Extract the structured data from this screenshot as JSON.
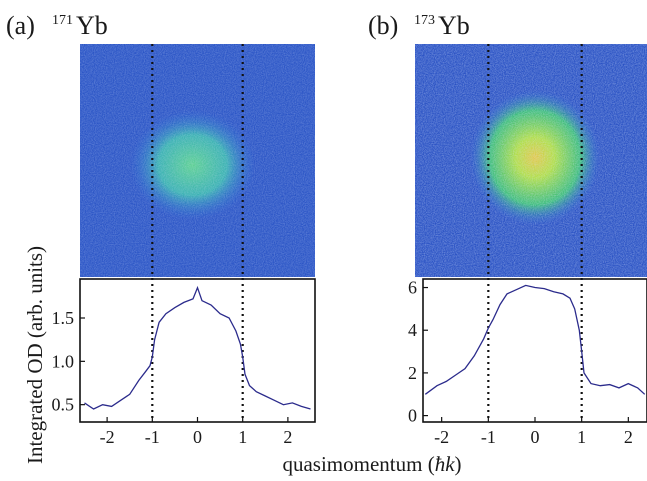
{
  "figure": {
    "ylabel": "Integrated OD (arb. units)",
    "xlabel_main": "quasimomentum (",
    "xlabel_symbol": "ħk",
    "xlabel_close": ")"
  },
  "panels": [
    {
      "tag": "(a)",
      "mass": "171",
      "element": "Yb",
      "image": {
        "color_bg": "#2a55c8",
        "color_center": "#45d29a",
        "peak": 0.55
      },
      "chart_data": {
        "type": "line",
        "xlim": [
          -2.6,
          2.6
        ],
        "ylim": [
          0.3,
          1.95
        ],
        "x_ticks": [
          -2,
          -1,
          0,
          1,
          2
        ],
        "x_tick_labels": [
          "-2",
          "-1",
          "0",
          "1",
          "2"
        ],
        "y_ticks": [
          0.5,
          1.0,
          1.5
        ],
        "y_tick_labels": [
          "0.5",
          "1.0",
          "1.5"
        ],
        "vlines": [
          -1,
          1
        ],
        "series": [
          {
            "color": "#2b2b8c",
            "x": [
              -2.5,
              -2.3,
              -2.1,
              -1.9,
              -1.7,
              -1.5,
              -1.3,
              -1.15,
              -1.05,
              -1.0,
              -0.95,
              -0.85,
              -0.7,
              -0.5,
              -0.3,
              -0.1,
              0.0,
              0.1,
              0.3,
              0.5,
              0.7,
              0.85,
              0.95,
              1.0,
              1.05,
              1.15,
              1.3,
              1.5,
              1.7,
              1.9,
              2.1,
              2.3,
              2.5
            ],
            "y": [
              0.52,
              0.45,
              0.5,
              0.48,
              0.55,
              0.62,
              0.78,
              0.88,
              0.95,
              1.05,
              1.25,
              1.45,
              1.55,
              1.62,
              1.68,
              1.72,
              1.85,
              1.7,
              1.65,
              1.55,
              1.5,
              1.35,
              1.2,
              1.05,
              0.85,
              0.72,
              0.65,
              0.6,
              0.55,
              0.5,
              0.52,
              0.48,
              0.45
            ]
          }
        ]
      }
    },
    {
      "tag": "(b)",
      "mass": "173",
      "element": "Yb",
      "image": {
        "color_bg": "#2a55c8",
        "color_center": "#c8e84a",
        "peak": 1.0
      },
      "chart_data": {
        "type": "line",
        "xlim": [
          -2.4,
          2.4
        ],
        "ylim": [
          -0.3,
          6.4
        ],
        "x_ticks": [
          -2,
          -1,
          0,
          1,
          2
        ],
        "x_tick_labels": [
          "-2",
          "-1",
          "0",
          "1",
          "2"
        ],
        "y_ticks": [
          0,
          2,
          4,
          6
        ],
        "y_tick_labels": [
          "0",
          "2",
          "4",
          "6"
        ],
        "vlines": [
          -1,
          1
        ],
        "series": [
          {
            "color": "#2b2b8c",
            "x": [
              -2.35,
              -2.1,
              -1.9,
              -1.7,
              -1.5,
              -1.3,
              -1.1,
              -1.0,
              -0.9,
              -0.75,
              -0.6,
              -0.4,
              -0.2,
              0.0,
              0.2,
              0.4,
              0.6,
              0.75,
              0.85,
              0.95,
              1.0,
              1.05,
              1.2,
              1.4,
              1.6,
              1.8,
              2.0,
              2.2,
              2.35
            ],
            "y": [
              1.0,
              1.4,
              1.6,
              1.9,
              2.2,
              2.8,
              3.6,
              4.1,
              4.5,
              5.2,
              5.7,
              5.9,
              6.1,
              6.0,
              5.95,
              5.8,
              5.7,
              5.5,
              5.0,
              4.0,
              3.0,
              2.0,
              1.5,
              1.4,
              1.45,
              1.3,
              1.5,
              1.3,
              1.0
            ]
          }
        ]
      }
    }
  ]
}
